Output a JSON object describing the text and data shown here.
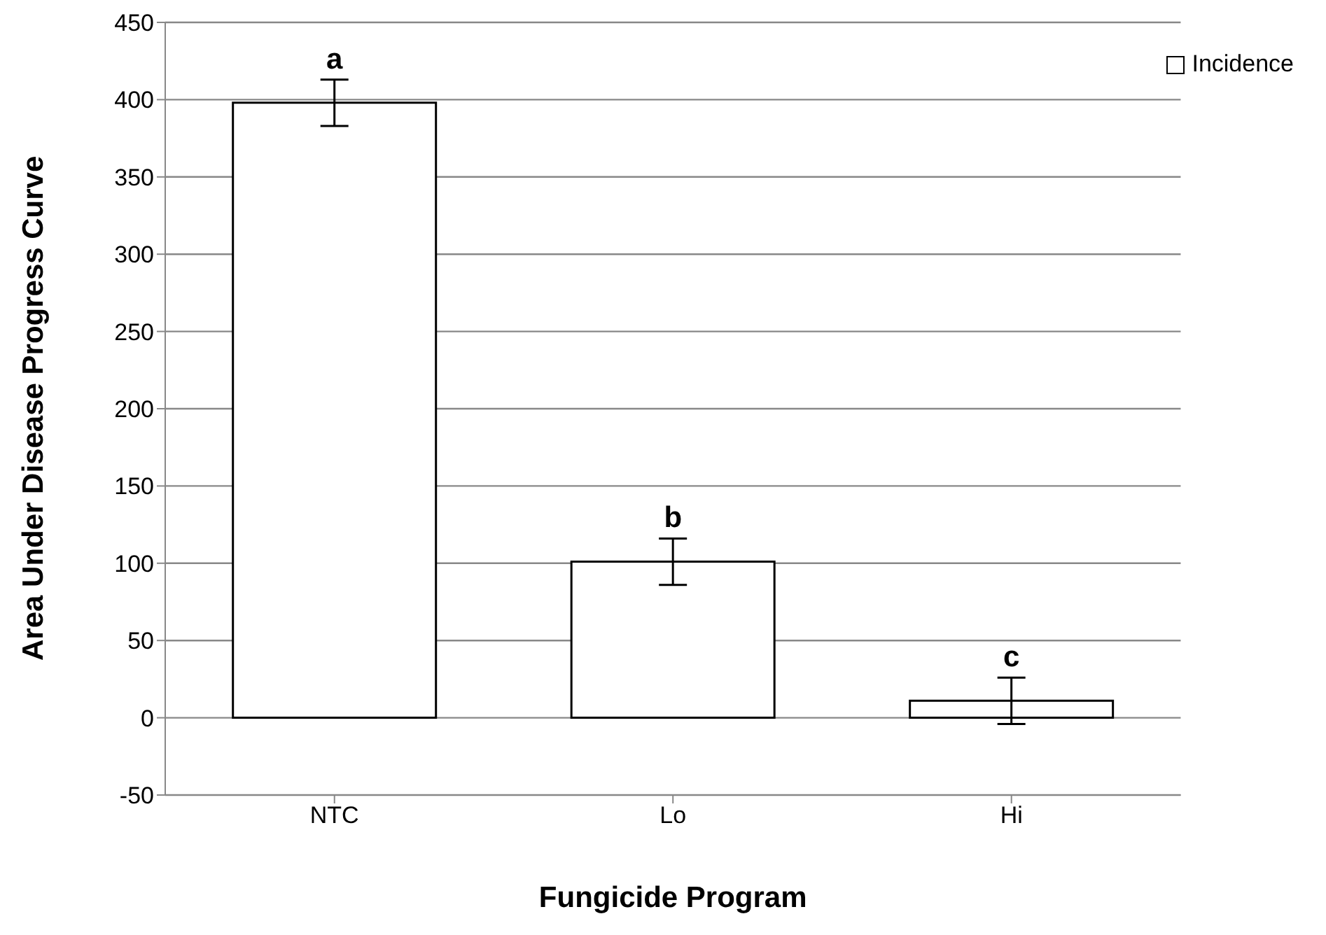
{
  "chart_data": {
    "type": "bar",
    "xlabel": "Fungicide Program",
    "ylabel": "Area Under Disease Progress Curve",
    "categories": [
      "NTC",
      "Lo",
      "Hi"
    ],
    "series": [
      {
        "name": "Incidence",
        "color": "#ffffff",
        "values": [
          398,
          101,
          11
        ],
        "errors": [
          15,
          15,
          15
        ]
      }
    ],
    "ylim": [
      -50,
      450
    ],
    "yticks": [
      -50,
      0,
      50,
      100,
      150,
      200,
      250,
      300,
      350,
      400,
      450
    ],
    "grid": "y",
    "legend": "top right",
    "annotations": [
      {
        "text": "a",
        "x": "NTC",
        "y": 413
      },
      {
        "text": "b",
        "x": "Lo",
        "y": 116
      },
      {
        "text": "c",
        "x": "Hi",
        "y": 26
      }
    ]
  }
}
